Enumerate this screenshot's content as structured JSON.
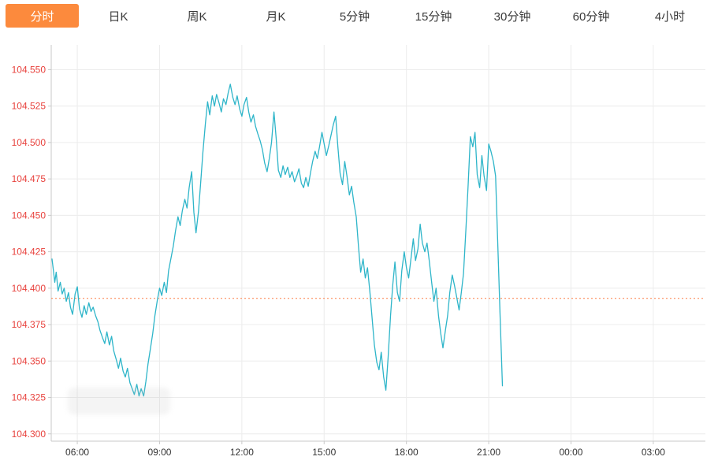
{
  "tabbar": {
    "tabs": [
      {
        "id": "fenshi",
        "label": "分时",
        "active": true
      },
      {
        "id": "day-k",
        "label": "日K",
        "active": false
      },
      {
        "id": "week-k",
        "label": "周K",
        "active": false
      },
      {
        "id": "month-k",
        "label": "月K",
        "active": false
      },
      {
        "id": "5min",
        "label": "5分钟",
        "active": false
      },
      {
        "id": "15min",
        "label": "15分钟",
        "active": false
      },
      {
        "id": "30min",
        "label": "30分钟",
        "active": false
      },
      {
        "id": "60min",
        "label": "60分钟",
        "active": false
      },
      {
        "id": "4hour",
        "label": "4小时",
        "active": false
      }
    ]
  },
  "colors": {
    "active_tab_bg": "#fc8a3d",
    "tab_text": "#3a3a3a",
    "line": "#2eb5c9",
    "y_label": "#e8423d",
    "x_label": "#333333",
    "grid": "#ececec",
    "axis": "#c9c9c9",
    "reference_line": "#fb7d44"
  },
  "chart_data": {
    "type": "line",
    "title": "",
    "xlabel": "",
    "ylabel": "",
    "legend": false,
    "grid": true,
    "y_tick_labels": [
      "104.550",
      "104.525",
      "104.500",
      "104.475",
      "104.450",
      "104.425",
      "104.400",
      "104.375",
      "104.350",
      "104.325",
      "104.300"
    ],
    "x_tick_labels": [
      "06:00",
      "09:00",
      "12:00",
      "15:00",
      "18:00",
      "21:00",
      "00:00",
      "03:00"
    ],
    "x_tick_hours": [
      6,
      9,
      12,
      15,
      18,
      21,
      24,
      27
    ],
    "xlim_hours": [
      5.05,
      28.9
    ],
    "ylim": [
      104.295,
      104.567
    ],
    "reference_price": 104.393,
    "series": [
      {
        "name": "price",
        "color": "#2eb5c9",
        "points": [
          [
            5.08,
            104.42
          ],
          [
            5.13,
            104.412
          ],
          [
            5.18,
            104.404
          ],
          [
            5.23,
            104.411
          ],
          [
            5.3,
            104.398
          ],
          [
            5.38,
            104.404
          ],
          [
            5.45,
            104.396
          ],
          [
            5.52,
            104.4
          ],
          [
            5.6,
            104.391
          ],
          [
            5.68,
            104.397
          ],
          [
            5.75,
            104.387
          ],
          [
            5.83,
            104.382
          ],
          [
            5.92,
            104.396
          ],
          [
            6.0,
            104.401
          ],
          [
            6.08,
            104.386
          ],
          [
            6.17,
            104.38
          ],
          [
            6.25,
            104.388
          ],
          [
            6.33,
            104.382
          ],
          [
            6.42,
            104.39
          ],
          [
            6.5,
            104.384
          ],
          [
            6.58,
            104.387
          ],
          [
            6.67,
            104.381
          ],
          [
            6.75,
            104.377
          ],
          [
            6.83,
            104.371
          ],
          [
            6.92,
            104.366
          ],
          [
            7.0,
            104.362
          ],
          [
            7.08,
            104.37
          ],
          [
            7.17,
            104.361
          ],
          [
            7.25,
            104.367
          ],
          [
            7.33,
            104.357
          ],
          [
            7.42,
            104.351
          ],
          [
            7.5,
            104.345
          ],
          [
            7.58,
            104.352
          ],
          [
            7.67,
            104.343
          ],
          [
            7.75,
            104.339
          ],
          [
            7.83,
            104.345
          ],
          [
            7.92,
            104.335
          ],
          [
            8.0,
            104.331
          ],
          [
            8.08,
            104.327
          ],
          [
            8.17,
            104.334
          ],
          [
            8.25,
            104.326
          ],
          [
            8.33,
            104.331
          ],
          [
            8.42,
            104.326
          ],
          [
            8.5,
            104.336
          ],
          [
            8.58,
            104.348
          ],
          [
            8.67,
            104.359
          ],
          [
            8.75,
            104.369
          ],
          [
            8.83,
            104.381
          ],
          [
            8.92,
            104.392
          ],
          [
            9.0,
            104.4
          ],
          [
            9.08,
            104.395
          ],
          [
            9.17,
            104.404
          ],
          [
            9.25,
            104.397
          ],
          [
            9.33,
            104.412
          ],
          [
            9.42,
            104.421
          ],
          [
            9.5,
            104.429
          ],
          [
            9.58,
            104.439
          ],
          [
            9.67,
            104.449
          ],
          [
            9.75,
            104.443
          ],
          [
            9.83,
            104.453
          ],
          [
            9.92,
            104.461
          ],
          [
            10.0,
            104.455
          ],
          [
            10.08,
            104.469
          ],
          [
            10.17,
            104.48
          ],
          [
            10.25,
            104.452
          ],
          [
            10.33,
            104.438
          ],
          [
            10.42,
            104.453
          ],
          [
            10.5,
            104.473
          ],
          [
            10.58,
            104.493
          ],
          [
            10.67,
            104.513
          ],
          [
            10.75,
            104.528
          ],
          [
            10.83,
            104.519
          ],
          [
            10.92,
            104.532
          ],
          [
            11.0,
            104.525
          ],
          [
            11.08,
            104.533
          ],
          [
            11.17,
            104.527
          ],
          [
            11.25,
            104.521
          ],
          [
            11.33,
            104.53
          ],
          [
            11.42,
            104.526
          ],
          [
            11.5,
            104.534
          ],
          [
            11.58,
            104.54
          ],
          [
            11.67,
            104.531
          ],
          [
            11.75,
            104.526
          ],
          [
            11.83,
            104.532
          ],
          [
            11.92,
            104.523
          ],
          [
            12.0,
            104.518
          ],
          [
            12.08,
            104.526
          ],
          [
            12.17,
            104.531
          ],
          [
            12.25,
            104.521
          ],
          [
            12.33,
            104.514
          ],
          [
            12.42,
            104.519
          ],
          [
            12.5,
            104.511
          ],
          [
            12.58,
            104.506
          ],
          [
            12.67,
            104.501
          ],
          [
            12.75,
            104.495
          ],
          [
            12.83,
            104.486
          ],
          [
            12.92,
            104.48
          ],
          [
            13.0,
            104.489
          ],
          [
            13.08,
            104.5
          ],
          [
            13.17,
            104.521
          ],
          [
            13.25,
            104.503
          ],
          [
            13.33,
            104.481
          ],
          [
            13.42,
            104.476
          ],
          [
            13.5,
            104.484
          ],
          [
            13.58,
            104.478
          ],
          [
            13.67,
            104.483
          ],
          [
            13.75,
            104.476
          ],
          [
            13.83,
            104.48
          ],
          [
            13.92,
            104.473
          ],
          [
            14.0,
            104.477
          ],
          [
            14.08,
            104.482
          ],
          [
            14.17,
            104.472
          ],
          [
            14.25,
            104.469
          ],
          [
            14.33,
            104.476
          ],
          [
            14.42,
            104.47
          ],
          [
            14.5,
            104.479
          ],
          [
            14.58,
            104.487
          ],
          [
            14.67,
            104.494
          ],
          [
            14.75,
            104.489
          ],
          [
            14.83,
            104.497
          ],
          [
            14.92,
            104.507
          ],
          [
            15.0,
            104.499
          ],
          [
            15.08,
            104.491
          ],
          [
            15.17,
            104.498
          ],
          [
            15.25,
            104.505
          ],
          [
            15.33,
            104.512
          ],
          [
            15.42,
            104.518
          ],
          [
            15.5,
            104.497
          ],
          [
            15.58,
            104.479
          ],
          [
            15.67,
            104.471
          ],
          [
            15.75,
            104.487
          ],
          [
            15.83,
            104.477
          ],
          [
            15.92,
            104.464
          ],
          [
            16.0,
            104.47
          ],
          [
            16.08,
            104.459
          ],
          [
            16.17,
            104.449
          ],
          [
            16.25,
            104.429
          ],
          [
            16.33,
            104.411
          ],
          [
            16.42,
            104.42
          ],
          [
            16.5,
            104.407
          ],
          [
            16.58,
            104.414
          ],
          [
            16.67,
            104.397
          ],
          [
            16.75,
            104.379
          ],
          [
            16.83,
            104.361
          ],
          [
            16.92,
            104.349
          ],
          [
            17.0,
            104.344
          ],
          [
            17.08,
            104.356
          ],
          [
            17.17,
            104.339
          ],
          [
            17.25,
            104.33
          ],
          [
            17.33,
            104.352
          ],
          [
            17.42,
            104.381
          ],
          [
            17.5,
            104.402
          ],
          [
            17.58,
            104.418
          ],
          [
            17.67,
            104.397
          ],
          [
            17.75,
            104.391
          ],
          [
            17.83,
            104.412
          ],
          [
            17.92,
            104.425
          ],
          [
            18.0,
            104.414
          ],
          [
            18.08,
            104.407
          ],
          [
            18.17,
            104.421
          ],
          [
            18.25,
            104.434
          ],
          [
            18.33,
            104.419
          ],
          [
            18.42,
            104.427
          ],
          [
            18.5,
            104.444
          ],
          [
            18.58,
            104.431
          ],
          [
            18.67,
            104.425
          ],
          [
            18.75,
            104.431
          ],
          [
            18.83,
            104.419
          ],
          [
            18.92,
            104.404
          ],
          [
            19.0,
            104.391
          ],
          [
            19.08,
            104.4
          ],
          [
            19.17,
            104.381
          ],
          [
            19.25,
            104.369
          ],
          [
            19.33,
            104.359
          ],
          [
            19.42,
            104.371
          ],
          [
            19.5,
            104.381
          ],
          [
            19.58,
            104.397
          ],
          [
            19.67,
            104.409
          ],
          [
            19.75,
            104.402
          ],
          [
            19.83,
            104.394
          ],
          [
            19.92,
            104.385
          ],
          [
            20.0,
            104.397
          ],
          [
            20.08,
            104.41
          ],
          [
            20.17,
            104.441
          ],
          [
            20.25,
            104.471
          ],
          [
            20.33,
            104.504
          ],
          [
            20.42,
            104.497
          ],
          [
            20.5,
            104.507
          ],
          [
            20.58,
            104.478
          ],
          [
            20.67,
            104.469
          ],
          [
            20.75,
            104.491
          ],
          [
            20.83,
            104.477
          ],
          [
            20.92,
            104.467
          ],
          [
            21.0,
            104.499
          ],
          [
            21.08,
            104.494
          ],
          [
            21.17,
            104.487
          ],
          [
            21.25,
            104.477
          ],
          [
            21.33,
            104.43
          ],
          [
            21.42,
            104.378
          ],
          [
            21.5,
            104.333
          ]
        ]
      }
    ]
  }
}
